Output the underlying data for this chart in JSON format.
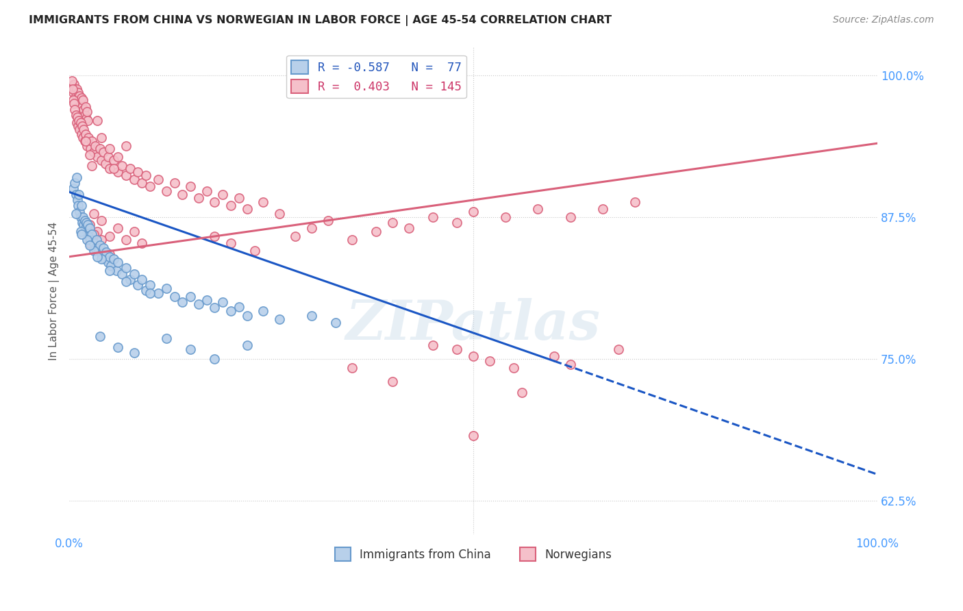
{
  "title": "IMMIGRANTS FROM CHINA VS NORWEGIAN IN LABOR FORCE | AGE 45-54 CORRELATION CHART",
  "source": "Source: ZipAtlas.com",
  "ylabel": "In Labor Force | Age 45-54",
  "yticks": [
    0.625,
    0.75,
    0.875,
    1.0
  ],
  "ytick_labels": [
    "62.5%",
    "75.0%",
    "87.5%",
    "100.0%"
  ],
  "legend_entries": [
    {
      "label": "R = -0.587   N =  77"
    },
    {
      "label": "R =  0.403   N = 145"
    }
  ],
  "legend_bottom": [
    "Immigrants from China",
    "Norwegians"
  ],
  "blue_scatter": [
    [
      0.005,
      0.9
    ],
    [
      0.007,
      0.905
    ],
    [
      0.008,
      0.895
    ],
    [
      0.009,
      0.91
    ],
    [
      0.01,
      0.89
    ],
    [
      0.011,
      0.885
    ],
    [
      0.012,
      0.895
    ],
    [
      0.013,
      0.88
    ],
    [
      0.014,
      0.875
    ],
    [
      0.015,
      0.885
    ],
    [
      0.016,
      0.87
    ],
    [
      0.017,
      0.875
    ],
    [
      0.018,
      0.868
    ],
    [
      0.019,
      0.872
    ],
    [
      0.02,
      0.865
    ],
    [
      0.021,
      0.87
    ],
    [
      0.022,
      0.862
    ],
    [
      0.023,
      0.868
    ],
    [
      0.024,
      0.858
    ],
    [
      0.025,
      0.865
    ],
    [
      0.026,
      0.855
    ],
    [
      0.028,
      0.86
    ],
    [
      0.03,
      0.852
    ],
    [
      0.032,
      0.848
    ],
    [
      0.034,
      0.855
    ],
    [
      0.036,
      0.845
    ],
    [
      0.038,
      0.85
    ],
    [
      0.04,
      0.842
    ],
    [
      0.042,
      0.848
    ],
    [
      0.044,
      0.838
    ],
    [
      0.046,
      0.844
    ],
    [
      0.048,
      0.835
    ],
    [
      0.05,
      0.84
    ],
    [
      0.052,
      0.832
    ],
    [
      0.055,
      0.838
    ],
    [
      0.058,
      0.828
    ],
    [
      0.06,
      0.835
    ],
    [
      0.065,
      0.825
    ],
    [
      0.07,
      0.83
    ],
    [
      0.075,
      0.82
    ],
    [
      0.08,
      0.825
    ],
    [
      0.085,
      0.815
    ],
    [
      0.09,
      0.82
    ],
    [
      0.095,
      0.81
    ],
    [
      0.1,
      0.815
    ],
    [
      0.11,
      0.808
    ],
    [
      0.12,
      0.812
    ],
    [
      0.13,
      0.805
    ],
    [
      0.14,
      0.8
    ],
    [
      0.15,
      0.805
    ],
    [
      0.16,
      0.798
    ],
    [
      0.17,
      0.802
    ],
    [
      0.18,
      0.795
    ],
    [
      0.19,
      0.8
    ],
    [
      0.2,
      0.792
    ],
    [
      0.21,
      0.796
    ],
    [
      0.22,
      0.788
    ],
    [
      0.24,
      0.792
    ],
    [
      0.26,
      0.785
    ],
    [
      0.014,
      0.862
    ],
    [
      0.022,
      0.855
    ],
    [
      0.03,
      0.845
    ],
    [
      0.04,
      0.838
    ],
    [
      0.008,
      0.878
    ],
    [
      0.015,
      0.86
    ],
    [
      0.025,
      0.85
    ],
    [
      0.035,
      0.84
    ],
    [
      0.05,
      0.828
    ],
    [
      0.07,
      0.818
    ],
    [
      0.1,
      0.808
    ],
    [
      0.038,
      0.77
    ],
    [
      0.06,
      0.76
    ],
    [
      0.08,
      0.755
    ],
    [
      0.12,
      0.768
    ],
    [
      0.15,
      0.758
    ],
    [
      0.18,
      0.75
    ],
    [
      0.22,
      0.762
    ],
    [
      0.3,
      0.788
    ],
    [
      0.33,
      0.782
    ]
  ],
  "pink_scatter": [
    [
      0.004,
      0.99
    ],
    [
      0.005,
      0.985
    ],
    [
      0.006,
      0.992
    ],
    [
      0.007,
      0.988
    ],
    [
      0.008,
      0.982
    ],
    [
      0.009,
      0.988
    ],
    [
      0.01,
      0.98
    ],
    [
      0.011,
      0.985
    ],
    [
      0.012,
      0.978
    ],
    [
      0.013,
      0.982
    ],
    [
      0.014,
      0.975
    ],
    [
      0.015,
      0.98
    ],
    [
      0.016,
      0.972
    ],
    [
      0.017,
      0.978
    ],
    [
      0.018,
      0.97
    ],
    [
      0.019,
      0.965
    ],
    [
      0.02,
      0.972
    ],
    [
      0.021,
      0.962
    ],
    [
      0.022,
      0.968
    ],
    [
      0.023,
      0.96
    ],
    [
      0.003,
      0.995
    ],
    [
      0.004,
      0.988
    ],
    [
      0.005,
      0.978
    ],
    [
      0.006,
      0.975
    ],
    [
      0.007,
      0.97
    ],
    [
      0.008,
      0.965
    ],
    [
      0.009,
      0.958
    ],
    [
      0.01,
      0.963
    ],
    [
      0.011,
      0.955
    ],
    [
      0.012,
      0.96
    ],
    [
      0.013,
      0.952
    ],
    [
      0.014,
      0.958
    ],
    [
      0.015,
      0.948
    ],
    [
      0.016,
      0.955
    ],
    [
      0.017,
      0.945
    ],
    [
      0.018,
      0.952
    ],
    [
      0.019,
      0.942
    ],
    [
      0.02,
      0.948
    ],
    [
      0.022,
      0.938
    ],
    [
      0.024,
      0.945
    ],
    [
      0.026,
      0.935
    ],
    [
      0.028,
      0.942
    ],
    [
      0.03,
      0.932
    ],
    [
      0.032,
      0.938
    ],
    [
      0.035,
      0.928
    ],
    [
      0.038,
      0.935
    ],
    [
      0.04,
      0.925
    ],
    [
      0.042,
      0.932
    ],
    [
      0.045,
      0.922
    ],
    [
      0.048,
      0.928
    ],
    [
      0.05,
      0.918
    ],
    [
      0.055,
      0.925
    ],
    [
      0.06,
      0.915
    ],
    [
      0.065,
      0.92
    ],
    [
      0.07,
      0.912
    ],
    [
      0.075,
      0.918
    ],
    [
      0.08,
      0.908
    ],
    [
      0.085,
      0.915
    ],
    [
      0.09,
      0.905
    ],
    [
      0.095,
      0.912
    ],
    [
      0.1,
      0.902
    ],
    [
      0.11,
      0.908
    ],
    [
      0.12,
      0.898
    ],
    [
      0.13,
      0.905
    ],
    [
      0.14,
      0.895
    ],
    [
      0.15,
      0.902
    ],
    [
      0.16,
      0.892
    ],
    [
      0.17,
      0.898
    ],
    [
      0.18,
      0.888
    ],
    [
      0.19,
      0.895
    ],
    [
      0.2,
      0.885
    ],
    [
      0.21,
      0.892
    ],
    [
      0.22,
      0.882
    ],
    [
      0.24,
      0.888
    ],
    [
      0.26,
      0.878
    ],
    [
      0.025,
      0.868
    ],
    [
      0.03,
      0.878
    ],
    [
      0.035,
      0.862
    ],
    [
      0.04,
      0.872
    ],
    [
      0.05,
      0.858
    ],
    [
      0.06,
      0.865
    ],
    [
      0.07,
      0.855
    ],
    [
      0.08,
      0.862
    ],
    [
      0.09,
      0.852
    ],
    [
      0.025,
      0.852
    ],
    [
      0.03,
      0.86
    ],
    [
      0.035,
      0.848
    ],
    [
      0.04,
      0.855
    ],
    [
      0.05,
      0.842
    ],
    [
      0.035,
      0.96
    ],
    [
      0.04,
      0.945
    ],
    [
      0.05,
      0.935
    ],
    [
      0.02,
      0.942
    ],
    [
      0.025,
      0.93
    ],
    [
      0.028,
      0.92
    ],
    [
      0.06,
      0.928
    ],
    [
      0.07,
      0.938
    ],
    [
      0.055,
      0.918
    ],
    [
      0.18,
      0.858
    ],
    [
      0.2,
      0.852
    ],
    [
      0.23,
      0.845
    ],
    [
      0.28,
      0.858
    ],
    [
      0.3,
      0.865
    ],
    [
      0.32,
      0.872
    ],
    [
      0.35,
      0.855
    ],
    [
      0.38,
      0.862
    ],
    [
      0.4,
      0.87
    ],
    [
      0.42,
      0.865
    ],
    [
      0.45,
      0.875
    ],
    [
      0.48,
      0.87
    ],
    [
      0.5,
      0.88
    ],
    [
      0.54,
      0.875
    ],
    [
      0.58,
      0.882
    ],
    [
      0.62,
      0.875
    ],
    [
      0.66,
      0.882
    ],
    [
      0.7,
      0.888
    ],
    [
      0.45,
      0.762
    ],
    [
      0.48,
      0.758
    ],
    [
      0.5,
      0.752
    ],
    [
      0.52,
      0.748
    ],
    [
      0.55,
      0.742
    ],
    [
      0.56,
      0.72
    ],
    [
      0.6,
      0.752
    ],
    [
      0.62,
      0.745
    ],
    [
      0.4,
      0.73
    ],
    [
      0.35,
      0.742
    ],
    [
      0.5,
      0.682
    ],
    [
      0.68,
      0.758
    ]
  ],
  "blue_line_solid": {
    "x": [
      0.0,
      0.6
    ],
    "y": [
      0.897,
      0.748
    ]
  },
  "blue_line_dashed": {
    "x": [
      0.6,
      1.0
    ],
    "y": [
      0.748,
      0.648
    ]
  },
  "pink_line": {
    "x": [
      0.0,
      1.0
    ],
    "y": [
      0.84,
      0.94
    ]
  },
  "blue_line_color": "#1a56c4",
  "pink_line_color": "#d9607a",
  "scatter_blue_face": "#b8d0ea",
  "scatter_blue_edge": "#6699cc",
  "scatter_pink_face": "#f5c0ca",
  "scatter_pink_edge": "#d9607a",
  "watermark": "ZIPatlas",
  "bg_color": "#ffffff",
  "grid_color": "#c8c8c8",
  "xlim": [
    0.0,
    1.0
  ],
  "ylim": [
    0.595,
    1.025
  ]
}
